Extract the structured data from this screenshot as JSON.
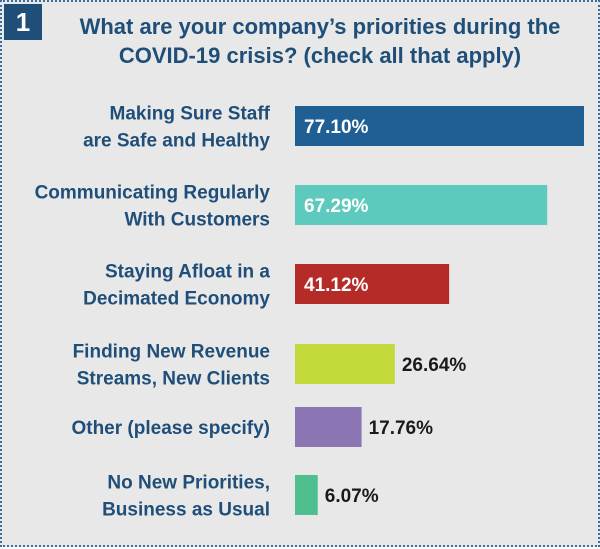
{
  "badge": "1",
  "chart_data": {
    "type": "bar",
    "orientation": "horizontal",
    "title": "What are your company’s priorities during the COVID-19 crisis? (check all that apply)",
    "categories": [
      [
        "Making Sure Staff",
        "are Safe and Healthy"
      ],
      [
        "Communicating Regularly",
        "With Customers"
      ],
      [
        "Staying Afloat in a",
        "Decimated Economy"
      ],
      [
        "Finding New Revenue",
        "Streams, New Clients"
      ],
      [
        "Other (please specify)"
      ],
      [
        "No New Priorities,",
        "Business as Usual"
      ]
    ],
    "values": [
      77.1,
      67.29,
      41.12,
      26.64,
      17.76,
      6.07
    ],
    "value_labels": [
      "77.10%",
      "67.29%",
      "41.12%",
      "26.64%",
      "17.76%",
      "6.07%"
    ],
    "colors": [
      "#1f5f94",
      "#5ec9bd",
      "#b52b27",
      "#c4d93b",
      "#8b76b3",
      "#4fbf8f"
    ],
    "label_color": "#1f4e79",
    "xlim": [
      0,
      77.1
    ],
    "grid": false,
    "legend": "none"
  }
}
